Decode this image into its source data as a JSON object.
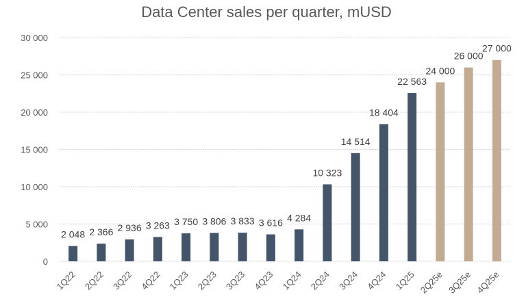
{
  "chart_data": {
    "type": "bar",
    "title": "Data Center sales per quarter, mUSD",
    "xlabel": "",
    "ylabel": "",
    "ylim": [
      0,
      30000
    ],
    "yticks": [
      0,
      5000,
      10000,
      15000,
      20000,
      25000,
      30000
    ],
    "ytick_labels": [
      "0",
      "5 000",
      "10 000",
      "15 000",
      "20 000",
      "25 000",
      "30 000"
    ],
    "grid": true,
    "legend": "none",
    "categories": [
      "1Q22",
      "2Q22",
      "3Q22",
      "4Q22",
      "1Q23",
      "2Q23",
      "3Q23",
      "4Q23",
      "1Q24",
      "2Q24",
      "3Q24",
      "4Q24",
      "1Q25",
      "2Q25e",
      "3Q25e",
      "4Q25e"
    ],
    "values": [
      2048,
      2366,
      2936,
      3263,
      3750,
      3806,
      3833,
      3616,
      4284,
      10323,
      14514,
      18404,
      22563,
      24000,
      26000,
      27000
    ],
    "value_labels": [
      "2 048",
      "2 366",
      "2 936",
      "3 263",
      "3 750",
      "3 806",
      "3 833",
      "3 616",
      "4 284",
      "10 323",
      "14 514",
      "18 404",
      "22 563",
      "24 000",
      "26 000",
      "27 000"
    ],
    "estimate": [
      false,
      false,
      false,
      false,
      false,
      false,
      false,
      false,
      false,
      false,
      false,
      false,
      false,
      true,
      true,
      true
    ],
    "colors": {
      "actual": "#445469",
      "estimate": "#c3ab93"
    }
  }
}
